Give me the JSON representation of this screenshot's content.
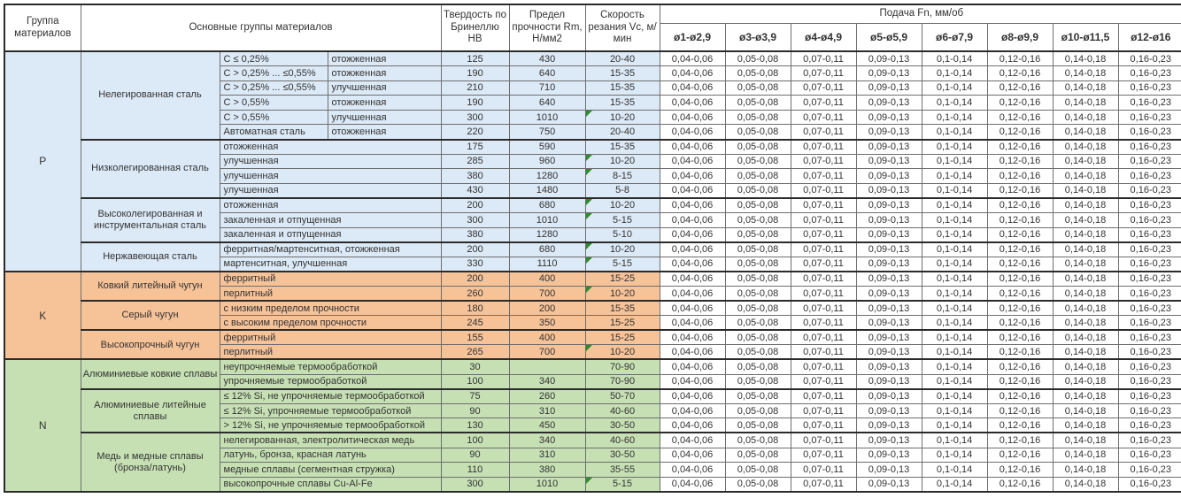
{
  "colors": {
    "section_p": "#dce9f6",
    "section_k": "#f6c298",
    "section_n": "#c6e0b4",
    "flag_green": "#2e8b2e"
  },
  "header": {
    "col_group": "Группа материалов",
    "col_main_groups": "Основные группы материалов",
    "col_hardness": "Твердость по Бринеллю HB",
    "col_strength": "Предел прочности Rm, Н/мм2",
    "col_speed": "Скорость резания Vc, м/мин",
    "feed_title": "Подача Fn, мм/об",
    "feed_cols": [
      "ø1-ø2,9",
      "ø3-ø3,9",
      "ø4-ø4,9",
      "ø5-ø5,9",
      "ø6-ø7,9",
      "ø8-ø9,9",
      "ø10-ø11,5",
      "ø12-ø16"
    ]
  },
  "feed_values": [
    "0,04-0,06",
    "0,05-0,08",
    "0,07-0,11",
    "0,09-0,13",
    "0,1-0,14",
    "0,12-0,16",
    "0,14-0,18",
    "0,16-0,23"
  ],
  "sections": [
    {
      "code": "P",
      "color_key": "section_p",
      "groups": [
        {
          "name": "Нелегированная сталь",
          "rows": [
            {
              "material": "C ≤ 0,25%",
              "condition": "отожженная",
              "hb": "125",
              "rm": "430",
              "vc": "20-40",
              "flag": false
            },
            {
              "material": "C > 0,25% ... ≤0,55%",
              "condition": "отожженная",
              "hb": "190",
              "rm": "640",
              "vc": "15-35",
              "flag": false
            },
            {
              "material": "C > 0,25% ... ≤0,55%",
              "condition": "улучшенная",
              "hb": "210",
              "rm": "710",
              "vc": "15-35",
              "flag": false
            },
            {
              "material": "C > 0,55%",
              "condition": "отожженная",
              "hb": "190",
              "rm": "640",
              "vc": "15-35",
              "flag": false
            },
            {
              "material": "C > 0,55%",
              "condition": "улучшенная",
              "hb": "300",
              "rm": "1010",
              "vc": "10-20",
              "flag": true
            },
            {
              "material": "Автоматная сталь",
              "condition": "отожженная",
              "hb": "220",
              "rm": "750",
              "vc": "20-40",
              "flag": false
            }
          ]
        },
        {
          "name": "Низколегированная сталь",
          "rows": [
            {
              "material": "отожженная",
              "condition": null,
              "hb": "175",
              "rm": "590",
              "vc": "15-35",
              "flag": false
            },
            {
              "material": "улучшенная",
              "condition": null,
              "hb": "285",
              "rm": "960",
              "vc": "10-20",
              "flag": true
            },
            {
              "material": "улучшенная",
              "condition": null,
              "hb": "380",
              "rm": "1280",
              "vc": "8-15",
              "flag": true
            },
            {
              "material": "улучшенная",
              "condition": null,
              "hb": "430",
              "rm": "1480",
              "vc": "5-8",
              "flag": false
            }
          ]
        },
        {
          "name": "Высоколегированная и инструментальная сталь",
          "rows": [
            {
              "material": "отожженная",
              "condition": null,
              "hb": "200",
              "rm": "680",
              "vc": "10-20",
              "flag": true
            },
            {
              "material": "закаленная и отпущенная",
              "condition": null,
              "hb": "300",
              "rm": "1010",
              "vc": "5-15",
              "flag": true
            },
            {
              "material": "закаленная и отпущенная",
              "condition": null,
              "hb": "380",
              "rm": "1280",
              "vc": "5-10",
              "flag": false
            }
          ]
        },
        {
          "name": "Нержавеющая сталь",
          "rows": [
            {
              "material": "ферритная/мартенситная, отожженная",
              "condition": null,
              "hb": "200",
              "rm": "680",
              "vc": "10-20",
              "flag": true
            },
            {
              "material": "мартенситная, улучшенная",
              "condition": null,
              "hb": "330",
              "rm": "1110",
              "vc": "5-15",
              "flag": true
            }
          ]
        }
      ]
    },
    {
      "code": "K",
      "color_key": "section_k",
      "groups": [
        {
          "name": "Ковкий литейный чугун",
          "rows": [
            {
              "material": "ферритный",
              "condition": null,
              "hb": "200",
              "rm": "400",
              "vc": "15-25",
              "flag": false
            },
            {
              "material": "перлитный",
              "condition": null,
              "hb": "260",
              "rm": "700",
              "vc": "10-20",
              "flag": true
            }
          ]
        },
        {
          "name": "Серый чугун",
          "rows": [
            {
              "material": "с низким пределом прочности",
              "condition": null,
              "hb": "180",
              "rm": "200",
              "vc": "15-35",
              "flag": false
            },
            {
              "material": "с высоким пределом прочности",
              "condition": null,
              "hb": "245",
              "rm": "350",
              "vc": "15-25",
              "flag": false
            }
          ]
        },
        {
          "name": "Высокопрочный чугун",
          "rows": [
            {
              "material": "ферритный",
              "condition": null,
              "hb": "155",
              "rm": "400",
              "vc": "15-25",
              "flag": false
            },
            {
              "material": "перлитный",
              "condition": null,
              "hb": "265",
              "rm": "700",
              "vc": "10-20",
              "flag": true
            }
          ]
        }
      ]
    },
    {
      "code": "N",
      "color_key": "section_n",
      "groups": [
        {
          "name": "Алюминиевые ковкие сплавы",
          "rows": [
            {
              "material": "неупрочняемые термообработкой",
              "condition": null,
              "hb": "30",
              "rm": "",
              "vc": "70-90",
              "flag": false
            },
            {
              "material": "упрочняемые термообработкой",
              "condition": null,
              "hb": "100",
              "rm": "340",
              "vc": "70-90",
              "flag": false
            }
          ]
        },
        {
          "name": "Алюминиевые литейные сплавы",
          "rows": [
            {
              "material": "≤ 12% Si, не упрочняемые термообработкой",
              "condition": null,
              "hb": "75",
              "rm": "260",
              "vc": "50-70",
              "flag": false
            },
            {
              "material": "≤ 12% Si, упрочняемые термообработкой",
              "condition": null,
              "hb": "90",
              "rm": "310",
              "vc": "40-60",
              "flag": false
            },
            {
              "material": "> 12% Si, не упрочняемые термообработкой",
              "condition": null,
              "hb": "130",
              "rm": "450",
              "vc": "30-50",
              "flag": false
            }
          ]
        },
        {
          "name": "Медь и медные сплавы (бронза/латунь)",
          "rows": [
            {
              "material": "нелегированная, электролитическая медь",
              "condition": null,
              "hb": "100",
              "rm": "340",
              "vc": "40-60",
              "flag": false
            },
            {
              "material": "латунь, бронза, красная латунь",
              "condition": null,
              "hb": "90",
              "rm": "310",
              "vc": "30-50",
              "flag": false
            },
            {
              "material": "медные сплавы (сегментная стружка)",
              "condition": null,
              "hb": "110",
              "rm": "380",
              "vc": "35-55",
              "flag": false
            },
            {
              "material": "высокопрочные сплавы Cu-Al-Fe",
              "condition": null,
              "hb": "300",
              "rm": "1010",
              "vc": "5-15",
              "flag": true
            }
          ]
        }
      ]
    }
  ]
}
